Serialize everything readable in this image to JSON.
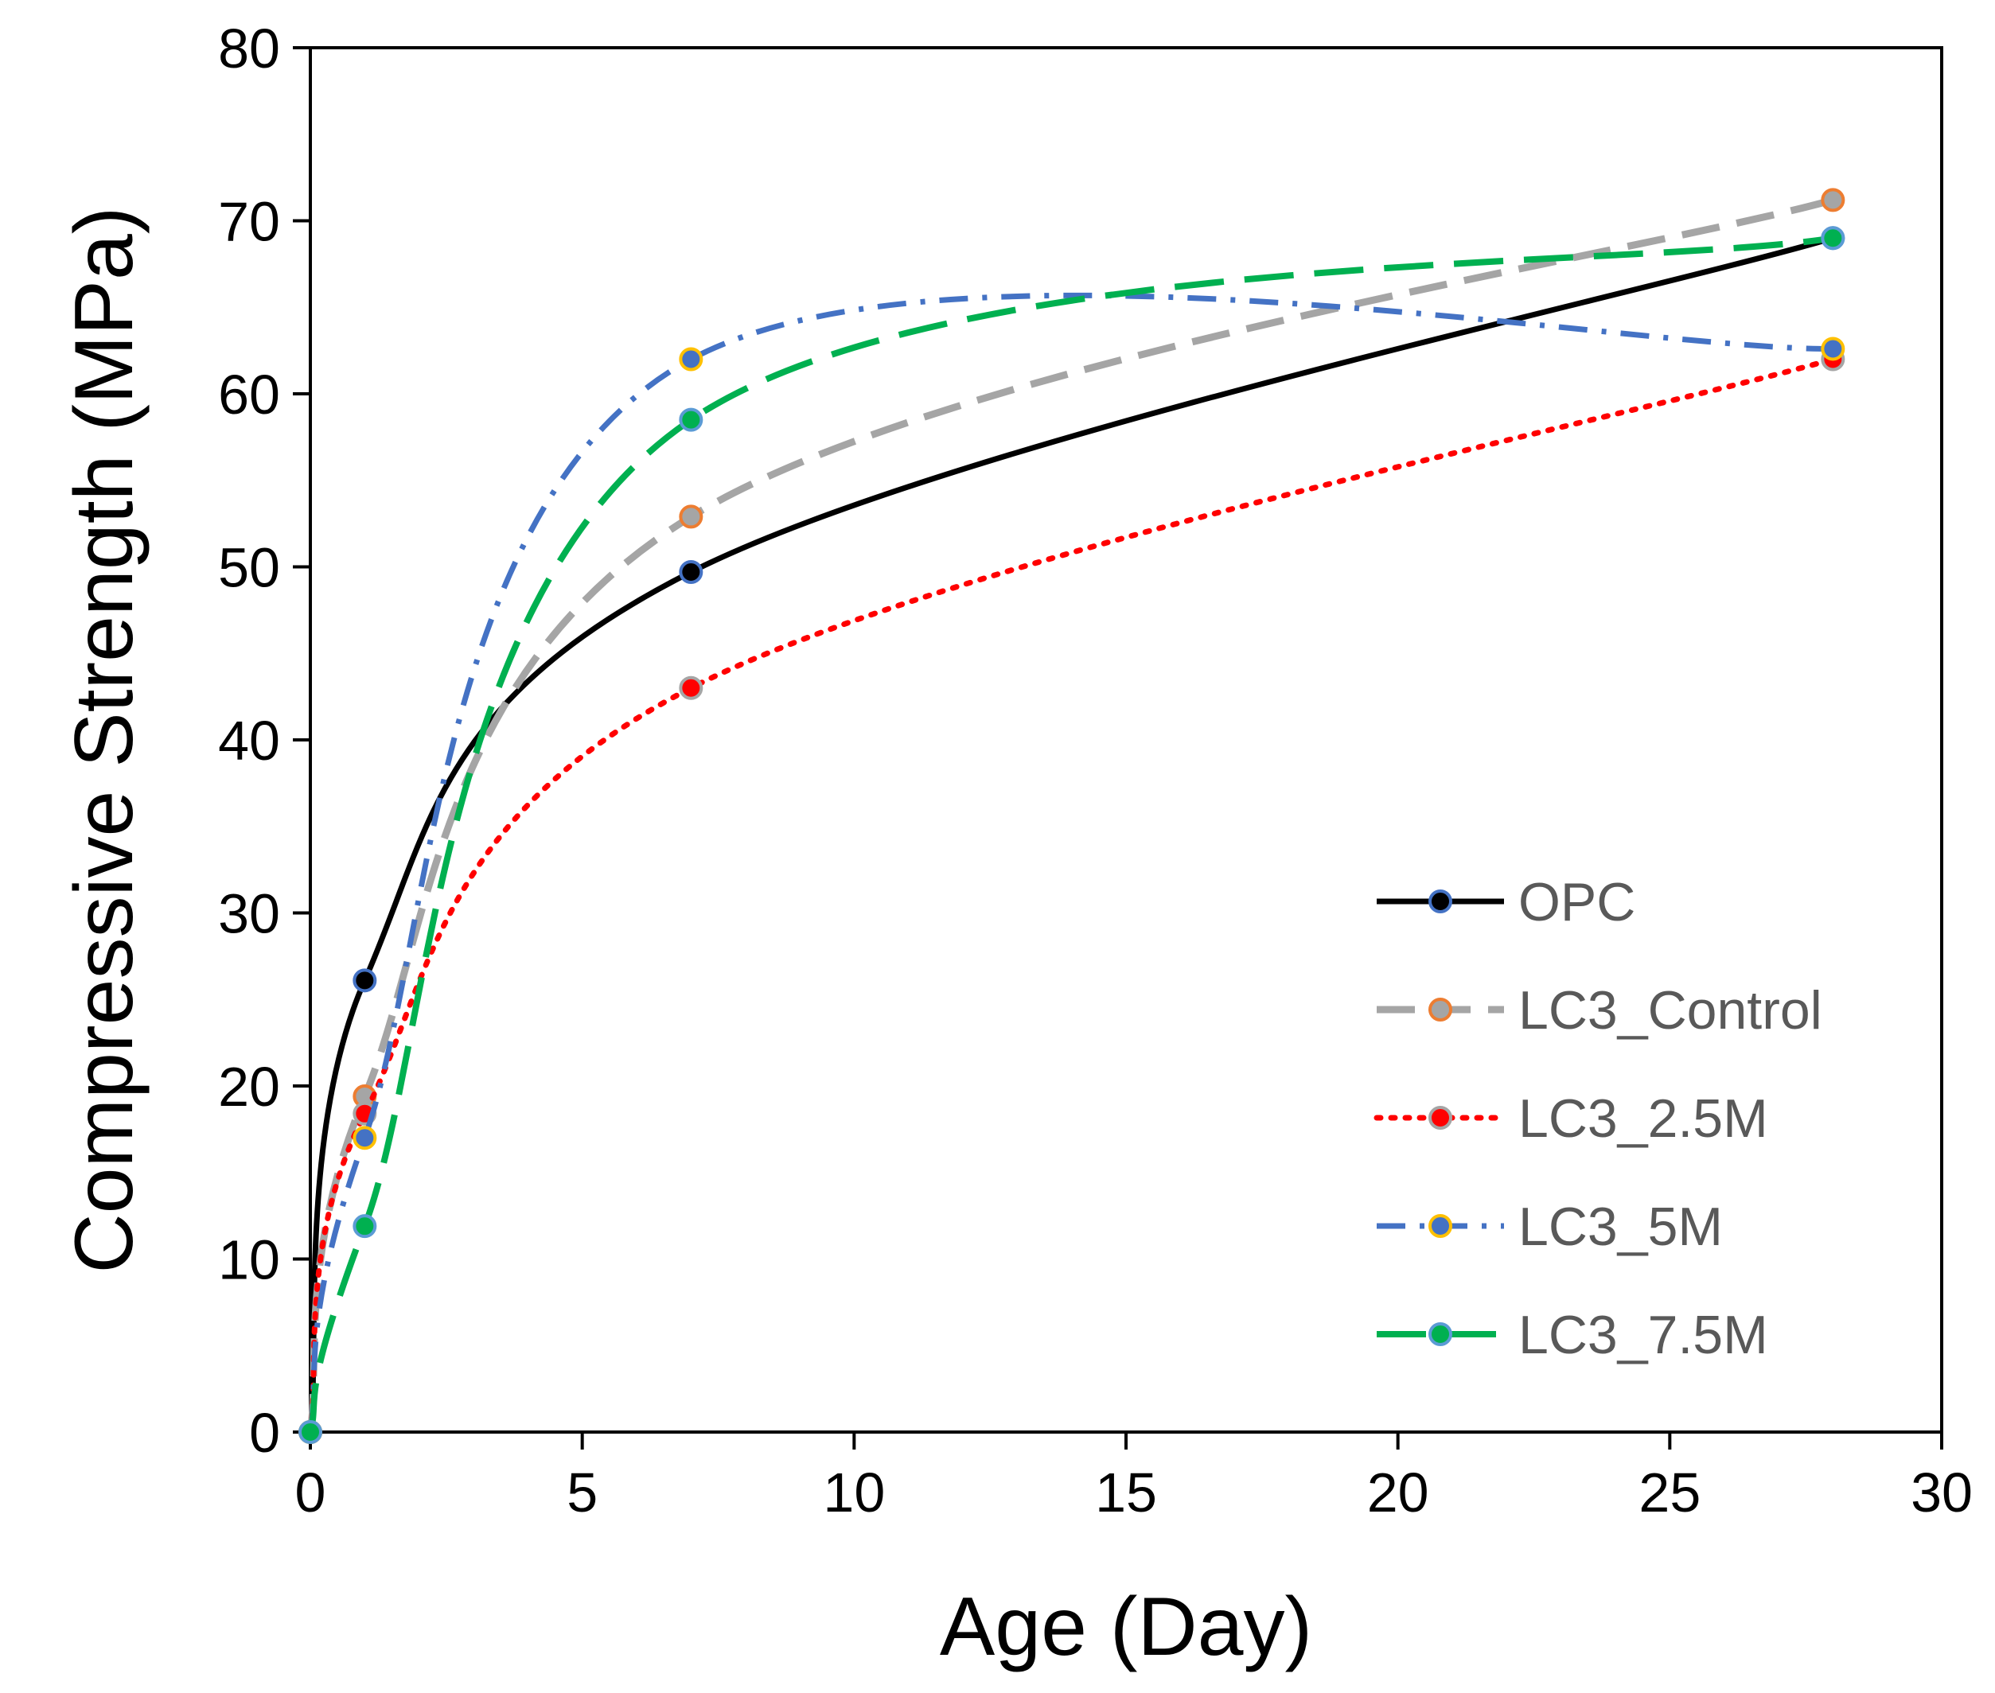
{
  "chart_data": {
    "type": "line",
    "title": "",
    "xlabel": "Age (Day)",
    "ylabel": "Compressive Strength (MPa)",
    "xlim": [
      0,
      30
    ],
    "ylim": [
      0,
      80
    ],
    "xticks": [
      0,
      5,
      10,
      15,
      20,
      25,
      30
    ],
    "yticks": [
      0,
      10,
      20,
      30,
      40,
      50,
      60,
      70,
      80
    ],
    "grid": false,
    "legend_position": "bottom-right",
    "x": [
      0,
      1,
      7,
      28
    ],
    "series": [
      {
        "name": "OPC",
        "values": [
          0,
          26.1,
          49.7,
          69.0
        ],
        "line_color": "#000000",
        "dash": "solid",
        "marker_fill": "#000000",
        "marker_edge": "#4472C4"
      },
      {
        "name": "LC3_Control",
        "values": [
          0,
          19.4,
          52.9,
          71.2
        ],
        "line_color": "#A5A5A5",
        "dash": "dashed",
        "marker_fill": "#A5A5A5",
        "marker_edge": "#ED7D31"
      },
      {
        "name": "LC3_2.5M",
        "values": [
          0,
          18.4,
          43.0,
          62.0
        ],
        "line_color": "#FF0000",
        "dash": "dotted",
        "marker_fill": "#FF0000",
        "marker_edge": "#A5A5A5"
      },
      {
        "name": "LC3_5M",
        "values": [
          0,
          17.0,
          62.0,
          62.6
        ],
        "line_color": "#4472C4",
        "dash": "dash-dot",
        "marker_fill": "#4472C4",
        "marker_edge": "#FFC000"
      },
      {
        "name": "LC3_7.5M",
        "values": [
          0,
          11.9,
          58.5,
          69.0
        ],
        "line_color": "#00B050",
        "dash": "long-dash",
        "marker_fill": "#00B050",
        "marker_edge": "#5B9BD5"
      }
    ]
  }
}
